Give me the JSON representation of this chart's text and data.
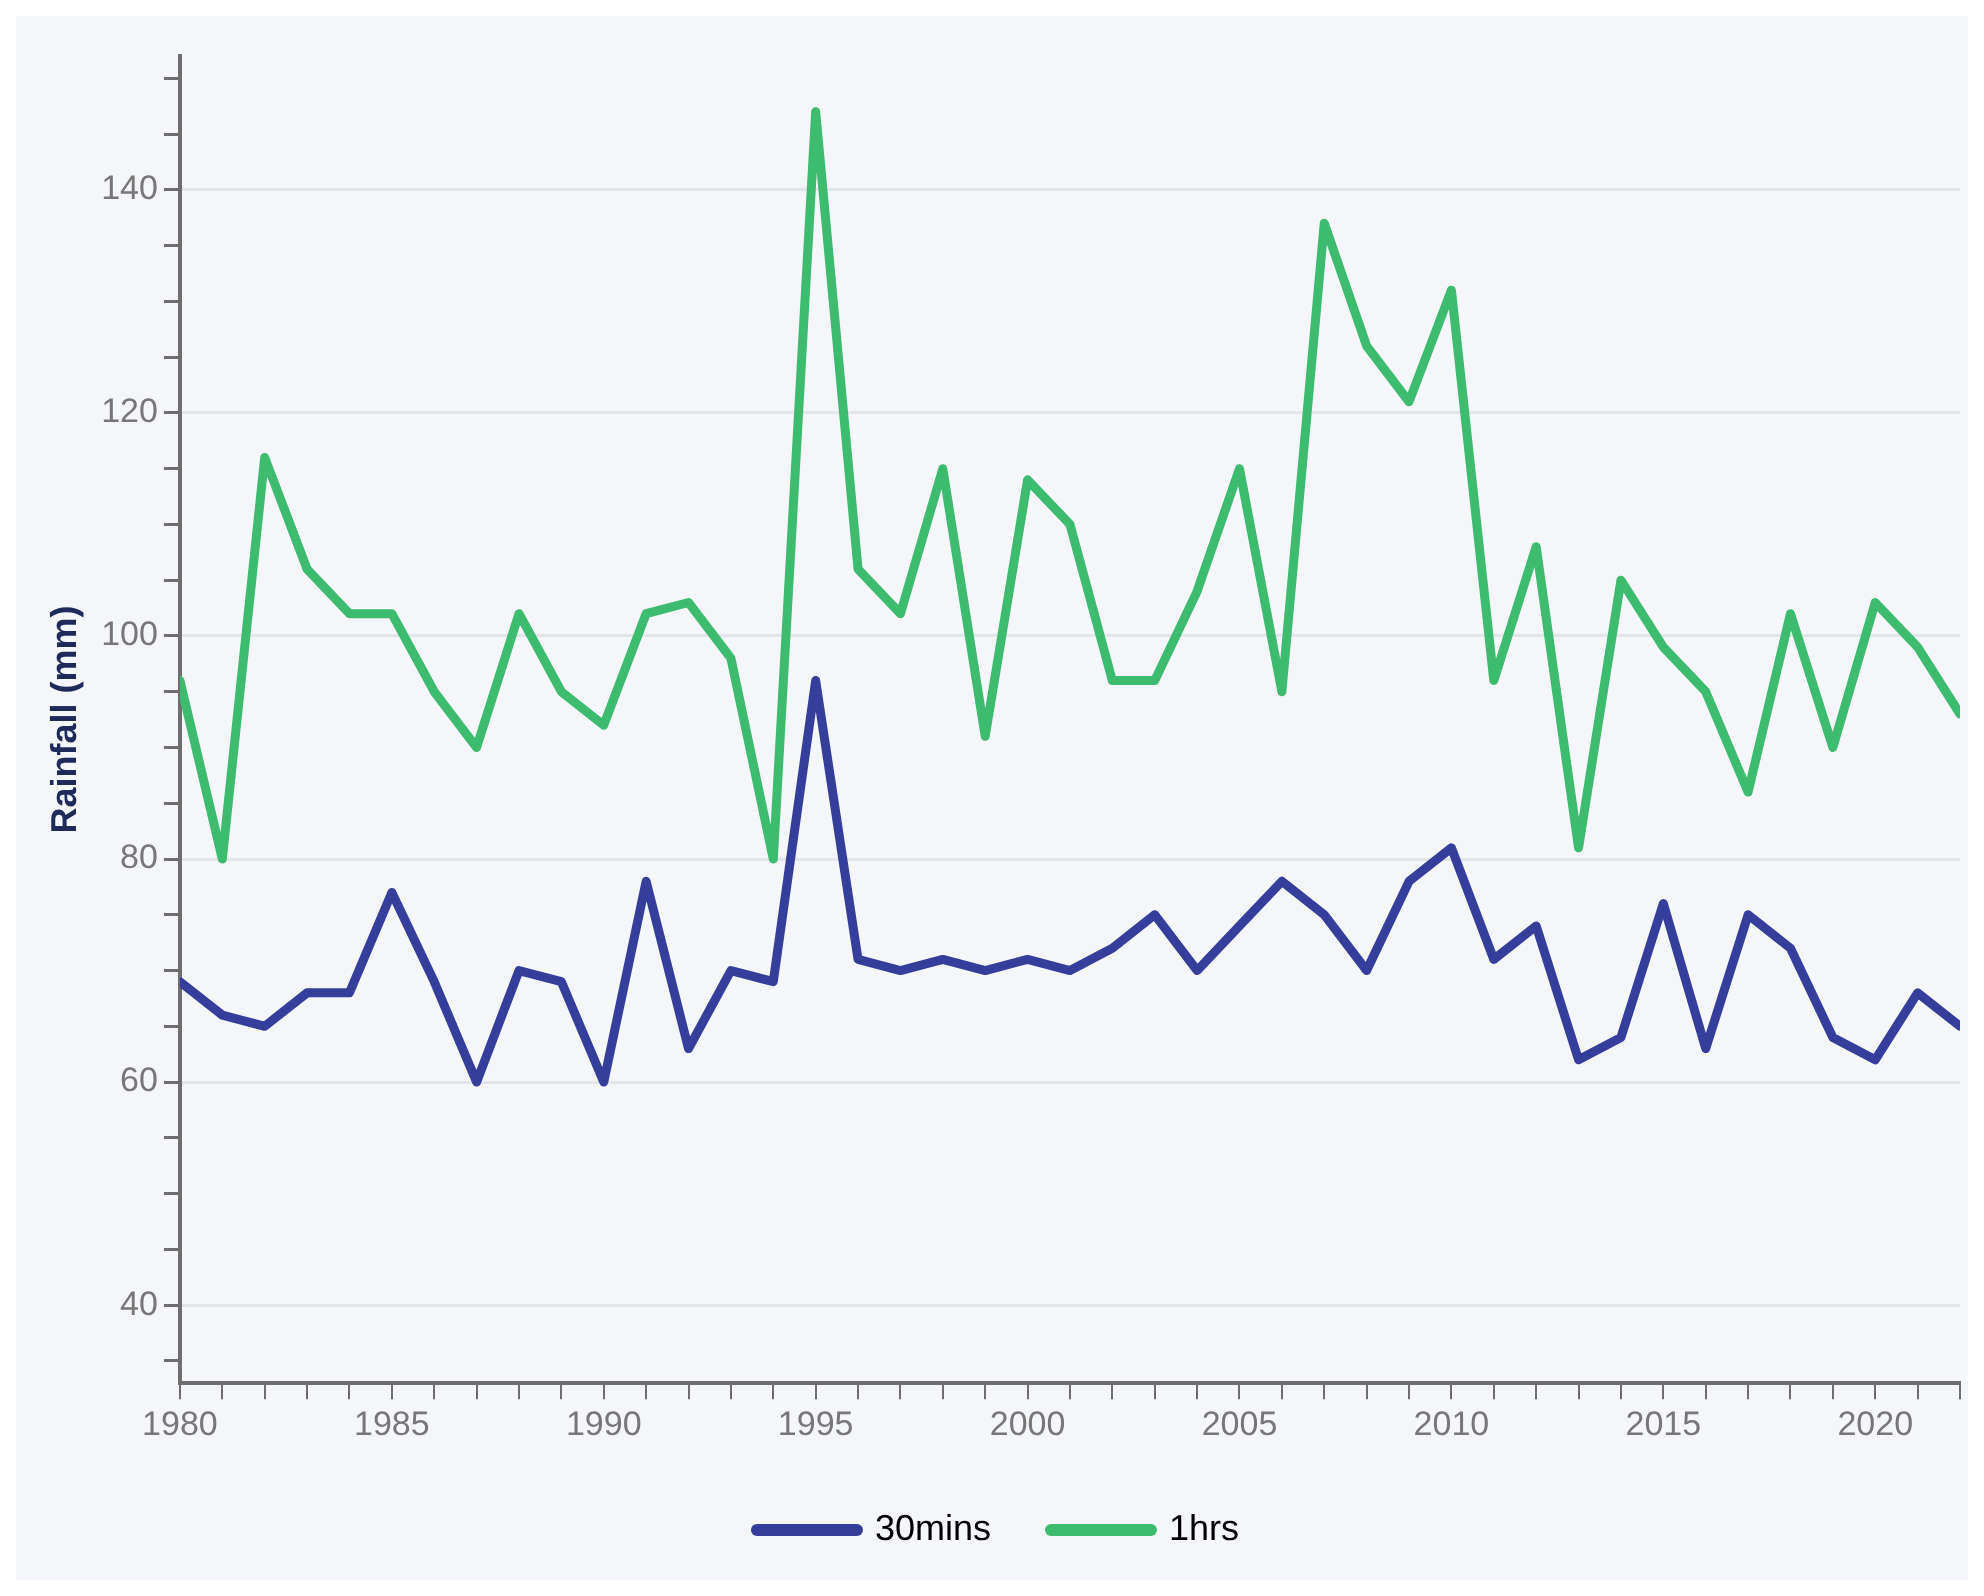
{
  "chart_data": {
    "type": "line",
    "ylabel": "Rainfall (mm)",
    "x": [
      1980,
      1981,
      1982,
      1983,
      1984,
      1985,
      1986,
      1987,
      1988,
      1989,
      1990,
      1991,
      1992,
      1993,
      1994,
      1995,
      1996,
      1997,
      1998,
      1999,
      2000,
      2001,
      2002,
      2003,
      2004,
      2005,
      2006,
      2007,
      2008,
      2009,
      2010,
      2011,
      2012,
      2013,
      2014,
      2015,
      2016,
      2017,
      2018,
      2019,
      2020,
      2021,
      2022
    ],
    "series": [
      {
        "name": "30mins",
        "color": "#353f9b",
        "values": [
          69,
          66,
          65,
          68,
          68,
          77,
          69,
          60,
          70,
          69,
          60,
          78,
          63,
          70,
          69,
          96,
          71,
          70,
          71,
          70,
          71,
          70,
          72,
          75,
          70,
          74,
          78,
          75,
          70,
          78,
          81,
          71,
          74,
          62,
          64,
          76,
          63,
          75,
          72,
          64,
          62,
          68,
          65
        ]
      },
      {
        "name": "1hrs",
        "color": "#3dbb6e",
        "values": [
          96,
          80,
          116,
          106,
          102,
          102,
          95,
          90,
          102,
          95,
          92,
          102,
          103,
          98,
          80,
          147,
          106,
          102,
          115,
          91,
          114,
          110,
          96,
          96,
          104,
          115,
          95,
          137,
          126,
          121,
          131,
          96,
          108,
          81,
          105,
          99,
          95,
          86,
          102,
          90,
          103,
          99,
          93
        ]
      }
    ],
    "xlim": [
      1980,
      2022
    ],
    "xticks": [
      1980,
      {
        "value": 1981,
        "label": null
      },
      {
        "value": 1982,
        "label": null
      },
      {
        "value": 1983,
        "label": null
      },
      {
        "value": 1984,
        "label": null
      },
      1985,
      {
        "value": 1986,
        "label": null
      },
      {
        "value": 1987,
        "label": null
      },
      {
        "value": 1988,
        "label": null
      },
      {
        "value": 1989,
        "label": null
      },
      1990,
      {
        "value": 1991,
        "label": null
      },
      {
        "value": 1992,
        "label": null
      },
      {
        "value": 1993,
        "label": null
      },
      {
        "value": 1994,
        "label": null
      },
      1995,
      {
        "value": 1996,
        "label": null
      },
      {
        "value": 1997,
        "label": null
      },
      {
        "value": 1998,
        "label": null
      },
      {
        "value": 1999,
        "label": null
      },
      2000,
      {
        "value": 2001,
        "label": null
      },
      {
        "value": 2002,
        "label": null
      },
      {
        "value": 2003,
        "label": null
      },
      {
        "value": 2004,
        "label": null
      },
      2005,
      {
        "value": 2006,
        "label": null
      },
      {
        "value": 2007,
        "label": null
      },
      {
        "value": 2008,
        "label": null
      },
      {
        "value": 2009,
        "label": null
      },
      2010,
      {
        "value": 2011,
        "label": null
      },
      {
        "value": 2012,
        "label": null
      },
      {
        "value": 2013,
        "label": null
      },
      {
        "value": 2014,
        "label": null
      },
      2015,
      {
        "value": 2016,
        "label": null
      },
      {
        "value": 2017,
        "label": null
      },
      {
        "value": 2018,
        "label": null
      },
      {
        "value": 2019,
        "label": null
      },
      2020,
      {
        "value": 2021,
        "label": null
      },
      {
        "value": 2022,
        "label": null
      }
    ],
    "ylim": [
      33,
      152
    ],
    "yticks": [
      {
        "value": 35,
        "label": null
      },
      40,
      {
        "value": 45,
        "label": null
      },
      {
        "value": 50,
        "label": null
      },
      {
        "value": 55,
        "label": null
      },
      60,
      {
        "value": 65,
        "label": null
      },
      {
        "value": 70,
        "label": null
      },
      {
        "value": 75,
        "label": null
      },
      80,
      {
        "value": 85,
        "label": null
      },
      {
        "value": 90,
        "label": null
      },
      {
        "value": 95,
        "label": null
      },
      100,
      {
        "value": 105,
        "label": null
      },
      {
        "value": 110,
        "label": null
      },
      {
        "value": 115,
        "label": null
      },
      120,
      {
        "value": 125,
        "label": null
      },
      {
        "value": 130,
        "label": null
      },
      {
        "value": 135,
        "label": null
      },
      140,
      {
        "value": 145,
        "label": null
      },
      {
        "value": 150,
        "label": null
      }
    ],
    "grid": "y",
    "legend": "bottom",
    "marker": "none",
    "line_style": "solid"
  }
}
